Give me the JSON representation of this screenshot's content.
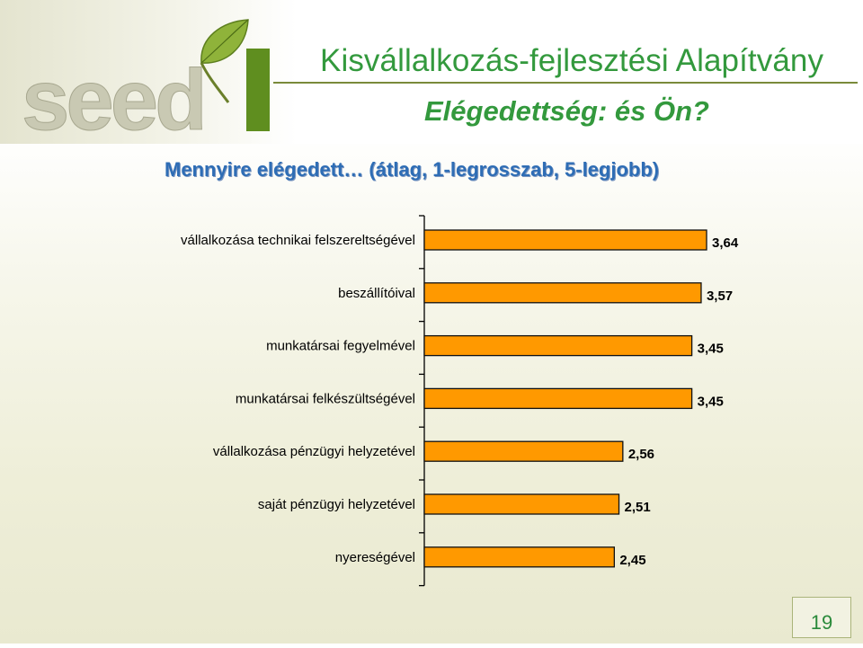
{
  "header": {
    "logo_text": "seed",
    "organization": "Kisvállalkozás-fejlesztési Alapítvány",
    "subtitle": "Elégedettség: és Ön?"
  },
  "question": "Mennyire elégedett… (átlag, 1-legrosszab, 5-legjobb)",
  "page_number": "19",
  "colors": {
    "bar_fill": "#ff9900",
    "bar_stroke": "#111111",
    "title_green": "#33993d",
    "question_blue": "#2e6db5"
  },
  "chart_data": {
    "type": "bar",
    "orientation": "horizontal",
    "categories": [
      "vállalkozása technikai felszereltségével",
      "beszállítóival",
      "munkatársai fegyelmével",
      "munkatársai felkészültségével",
      "vállalkozása pénzügyi helyzetével",
      "saját pénzügyi helyzetével",
      "nyereségével"
    ],
    "values": [
      3.64,
      3.57,
      3.45,
      3.45,
      2.56,
      2.51,
      2.45
    ],
    "value_labels": [
      "3,64",
      "3,57",
      "3,45",
      "3,45",
      "2,56",
      "2,51",
      "2,45"
    ],
    "xlim": [
      0,
      3.64
    ],
    "grid": false,
    "legend": "none"
  }
}
